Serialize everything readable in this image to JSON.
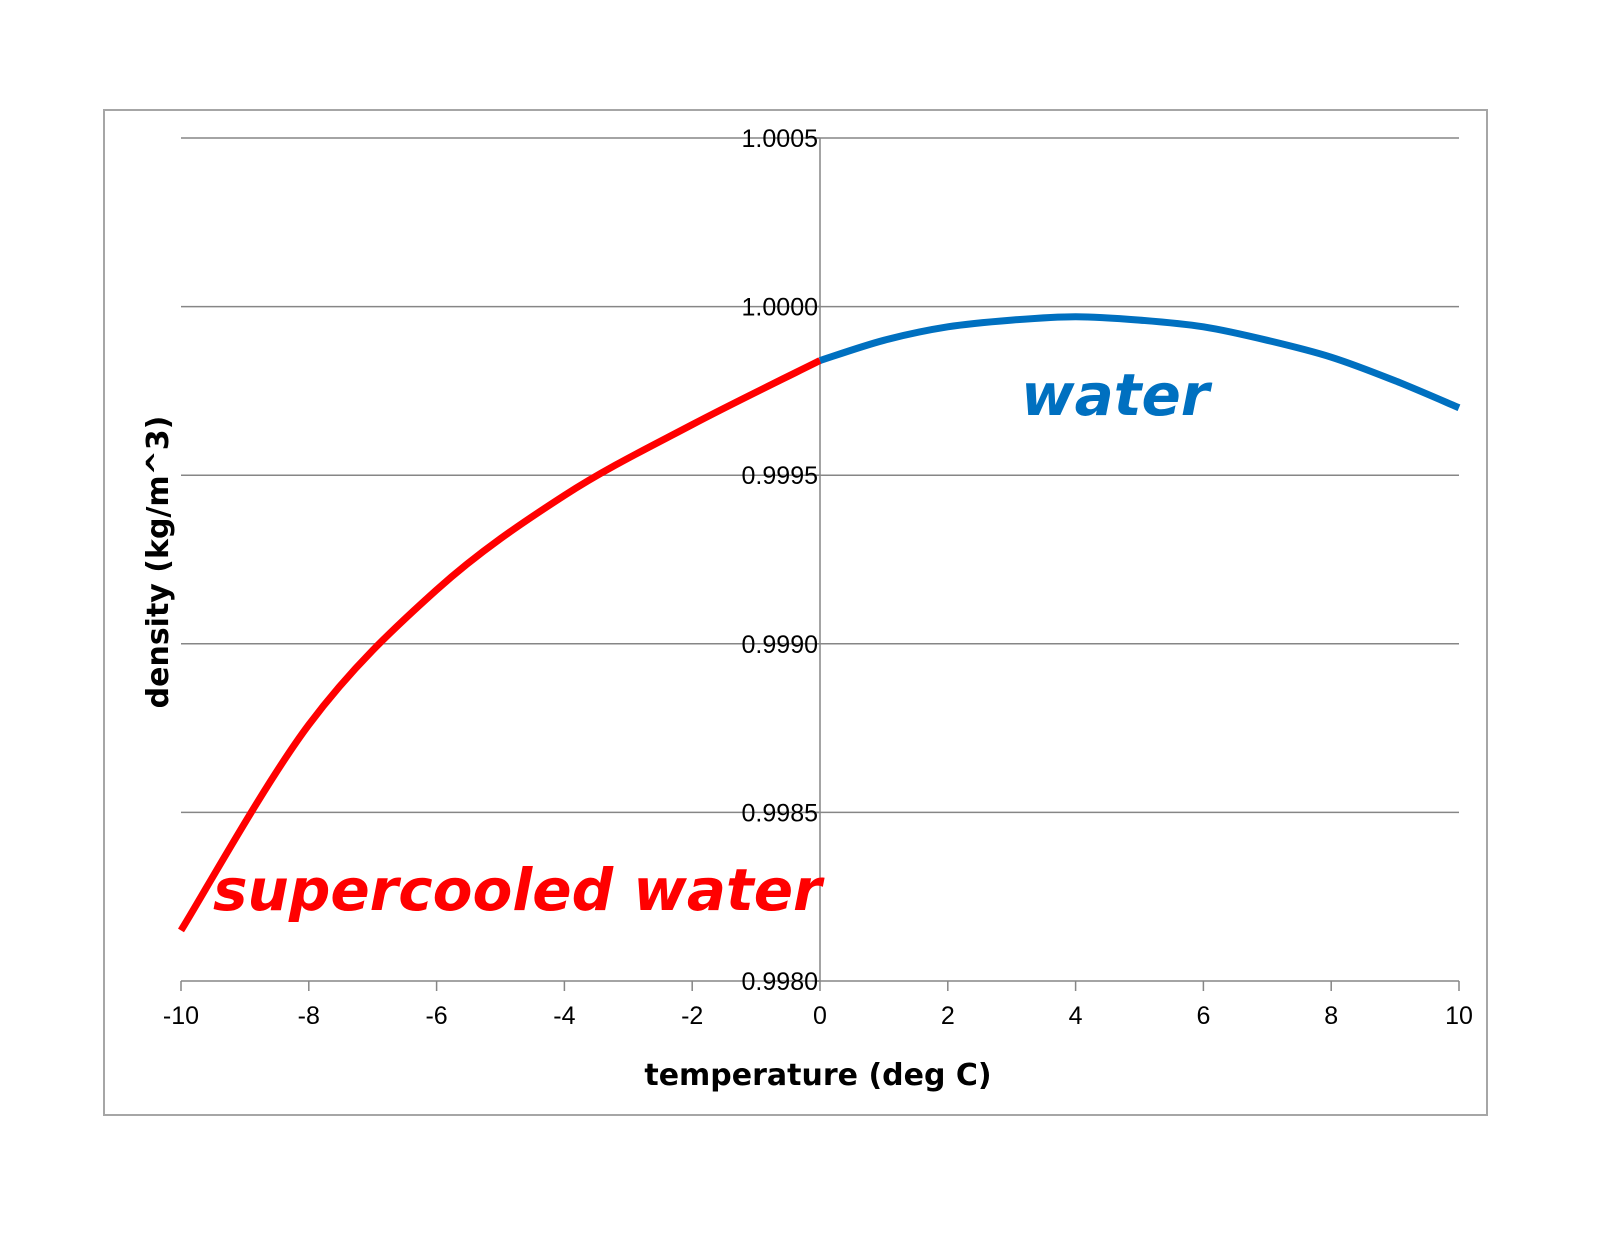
{
  "chart_data": {
    "type": "line",
    "title": "",
    "xlabel": "temperature (deg C)",
    "ylabel": "density (kg/m^3)",
    "xlim": [
      -10,
      10
    ],
    "ylim": [
      0.998,
      1.0005
    ],
    "x_ticks": [
      "-10",
      "-8",
      "-6",
      "-4",
      "-2",
      "0",
      "2",
      "4",
      "6",
      "8",
      "10"
    ],
    "y_ticks": [
      "0.9980",
      "0.9985",
      "0.9990",
      "0.9995",
      "1.0000",
      "1.0005"
    ],
    "grid": "horizontal",
    "series": [
      {
        "name": "supercooled water",
        "color": "#ff0000",
        "x": [
          -10,
          -8,
          -6,
          -4,
          -2,
          0
        ],
        "y": [
          0.99815,
          0.99876,
          0.99916,
          0.99944,
          0.99965,
          0.99984
        ]
      },
      {
        "name": "water",
        "color": "#0070c0",
        "x": [
          0,
          1,
          2,
          3,
          4,
          5,
          6,
          7,
          8,
          9,
          10
        ],
        "y": [
          0.99984,
          0.9999,
          0.99994,
          0.99996,
          0.99997,
          0.99996,
          0.99994,
          0.9999,
          0.99985,
          0.99978,
          0.9997
        ]
      }
    ],
    "annotations": [
      {
        "text": "supercooled water",
        "color": "#ff0000"
      },
      {
        "text": "water",
        "color": "#0070c0"
      }
    ]
  }
}
